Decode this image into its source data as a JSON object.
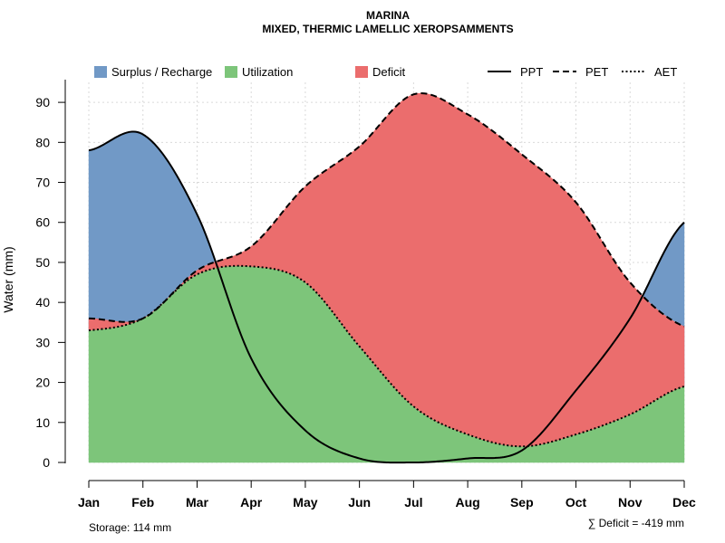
{
  "chart_data": {
    "type": "area",
    "title": "MARINA",
    "subtitle": "MIXED, THERMIC LAMELLIC XEROPSAMMENTS",
    "xlabel": "",
    "ylabel": "Water (mm)",
    "categories": [
      "Jan",
      "Feb",
      "Mar",
      "Apr",
      "May",
      "Jun",
      "Jul",
      "Aug",
      "Sep",
      "Oct",
      "Nov",
      "Dec"
    ],
    "ylim": [
      0,
      95
    ],
    "yticks": [
      0,
      10,
      20,
      30,
      40,
      50,
      60,
      70,
      80,
      90
    ],
    "grid": true,
    "series": [
      {
        "name": "PPT",
        "line_style": "solid",
        "values": [
          78,
          82,
          62,
          26,
          8,
          1,
          0,
          1,
          3,
          18,
          36,
          60
        ]
      },
      {
        "name": "PET",
        "line_style": "dashed",
        "values": [
          36,
          36,
          48,
          54,
          69,
          79,
          92,
          87,
          77,
          65,
          45,
          34
        ]
      },
      {
        "name": "AET",
        "line_style": "dotted",
        "values": [
          33,
          36,
          47,
          49,
          45,
          29,
          14,
          7,
          4,
          7,
          12,
          19
        ]
      }
    ],
    "areas": [
      {
        "name": "Surplus / Recharge",
        "color": "#7199c6",
        "between": [
          "AET",
          "PPT"
        ]
      },
      {
        "name": "Utilization",
        "color": "#7dc57a",
        "between": [
          "zero",
          "AET"
        ]
      },
      {
        "name": "Deficit",
        "color": "#eb6d6d",
        "between": [
          "AET",
          "PET"
        ]
      }
    ],
    "legend": {
      "placement": "top",
      "items": [
        {
          "label": "Surplus / Recharge",
          "kind": "area",
          "color": "#7199c6"
        },
        {
          "label": "Utilization",
          "kind": "area",
          "color": "#7dc57a"
        },
        {
          "label": "Deficit",
          "kind": "area",
          "color": "#eb6d6d"
        },
        {
          "label": "PPT",
          "kind": "line",
          "style": "solid"
        },
        {
          "label": "PET",
          "kind": "line",
          "style": "dashed"
        },
        {
          "label": "AET",
          "kind": "line",
          "style": "dotted"
        }
      ]
    },
    "annotations": {
      "storage": "Storage: 114 mm",
      "deficit": "∑ Deficit = -419 mm"
    }
  }
}
